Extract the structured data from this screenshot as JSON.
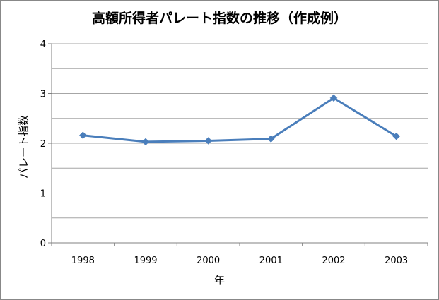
{
  "chart_data": {
    "type": "line",
    "title": "高額所得者パレート指数の推移（作成例）",
    "xlabel": "年",
    "ylabel": "パレート指数",
    "categories": [
      "1998",
      "1999",
      "2000",
      "2001",
      "2002",
      "2003"
    ],
    "series": [
      {
        "values": [
          2.16,
          2.03,
          2.05,
          2.09,
          2.91,
          2.14
        ]
      }
    ],
    "ylim": [
      0,
      4
    ],
    "yticks": [
      "0",
      "1",
      "2",
      "3",
      "4"
    ],
    "grid": true,
    "legend": "none",
    "line_color": "#4a7ebb",
    "grid_color": "#a6a6a6",
    "axis_color": "#808080"
  }
}
